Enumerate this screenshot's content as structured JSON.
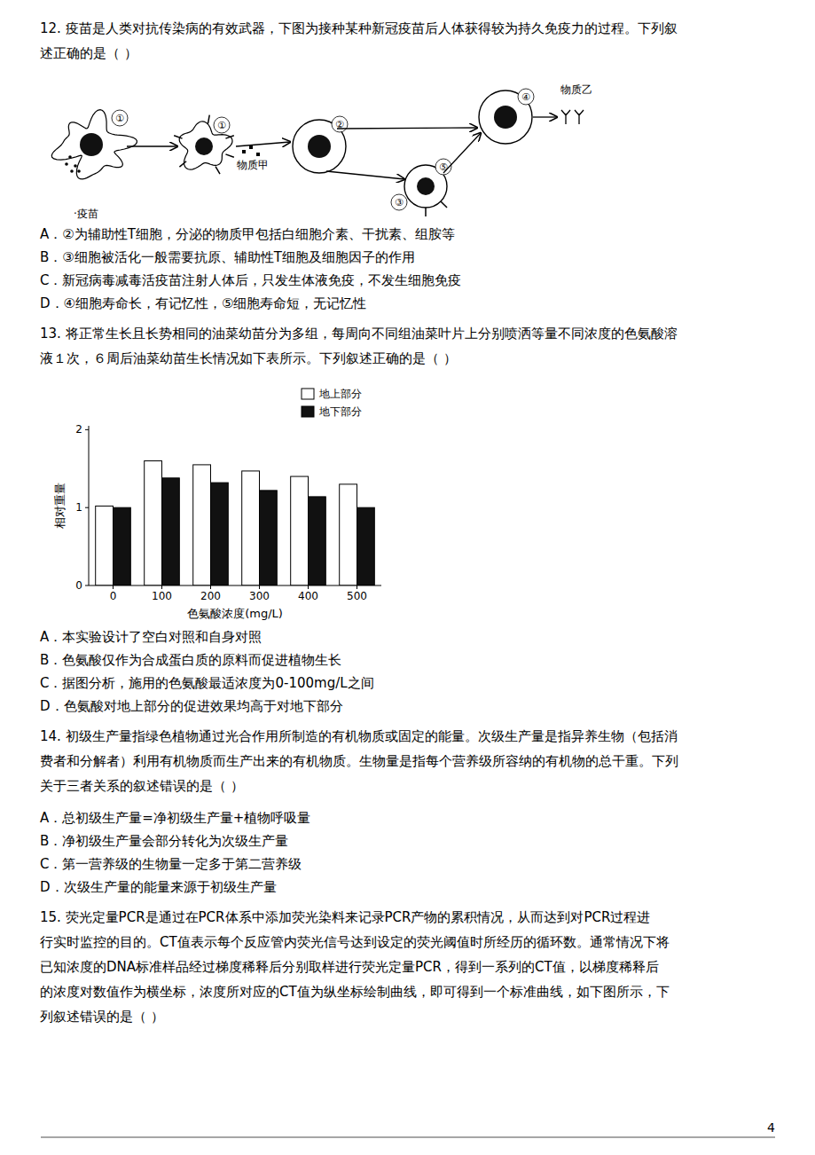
{
  "page_number": "4",
  "q12_lines": [
    "12. 疫苗是人类对抗传染病的有效武器，下图为接种某种新冠疫苗后人体获得较为持久免疫力的过程。下列叙",
    "述正确的是（    ）"
  ],
  "diagram": {
    "vaccine_label": "·疫苗",
    "substance_a": "物质甲",
    "substance_b": "物质乙",
    "cell_numbers": [
      "①",
      "①",
      "②",
      "③",
      "④",
      "⑤"
    ]
  },
  "q12_opts": [
    "A．②为辅助性T细胞，分泌的物质甲包括白细胞介素、干扰素、组胺等",
    "B．③细胞被活化一般需要抗原、辅助性T细胞及细胞因子的作用",
    "C．新冠病毒减毒活疫苗注射人体后，只发生体液免疫，不发生细胞免疫",
    "D．④细胞寿命长，有记忆性，⑤细胞寿命短，无记忆性"
  ],
  "q13_lines": [
    "13. 将正常生长且长势相同的油菜幼苗分为多组，每周向不同组油菜叶片上分别喷洒等量不同浓度的色氨酸溶",
    "液１次，６周后油菜幼苗生长情况如下表所示。下列叙述正确的是（    ）"
  ],
  "chart_data": {
    "type": "bar",
    "xlabel": "色氨酸浓度(mg/L)",
    "ylabel": "相对重量",
    "categories": [
      0,
      100,
      200,
      300,
      400,
      500
    ],
    "series": [
      {
        "name": "地上部分",
        "color": "#ffffff",
        "values": [
          1.02,
          1.6,
          1.55,
          1.47,
          1.4,
          1.3
        ]
      },
      {
        "name": "地下部分",
        "color": "#111111",
        "values": [
          1.0,
          1.38,
          1.32,
          1.22,
          1.14,
          1.0
        ]
      }
    ],
    "ylim": [
      0,
      2.05
    ],
    "yticks": [
      0,
      1,
      2
    ],
    "legend": "upper right",
    "grid": false
  },
  "q13_opts": [
    "A．本实验设计了空白对照和自身对照",
    "B．色氨酸仅作为合成蛋白质的原料而促进植物生长",
    "C．据图分析，施用的色氨酸最适浓度为0-100mg/L之间",
    "D．色氨酸对地上部分的促进效果均高于对地下部分"
  ],
  "q14_lines": [
    "14. 初级生产量指绿色植物通过光合作用所制造的有机物质或固定的能量。次级生产量是指异养生物（包括消",
    "费者和分解者）利用有机物质而生产出来的有机物质。生物量是指每个营养级所容纳的有机物的总干重。下列",
    "关于三者关系的叙述错误的是（    ）"
  ],
  "q14_opts": [
    "A．总初级生产量=净初级生产量+植物呼吸量",
    "B．净初级生产量会部分转化为次级生产量",
    "C．第一营养级的生物量一定多于第二营养级",
    "D．次级生产量的能量来源于初级生产量"
  ],
  "q15_lines": [
    "15. 荧光定量PCR是通过在PCR体系中添加荧光染料来记录PCR产物的累积情况，从而达到对PCR过程进",
    "行实时监控的目的。CT值表示每个反应管内荧光信号达到设定的荧光阈值时所经历的循环数。通常情况下将",
    "已知浓度的DNA标准样品经过梯度稀释后分别取样进行荧光定量PCR，得到一系列的CT值，以梯度稀释后",
    "的浓度对数值作为横坐标，浓度所对应的CT值为纵坐标绘制曲线，即可得到一个标准曲线，如下图所示，下",
    "列叙述错误的是（    ）"
  ]
}
